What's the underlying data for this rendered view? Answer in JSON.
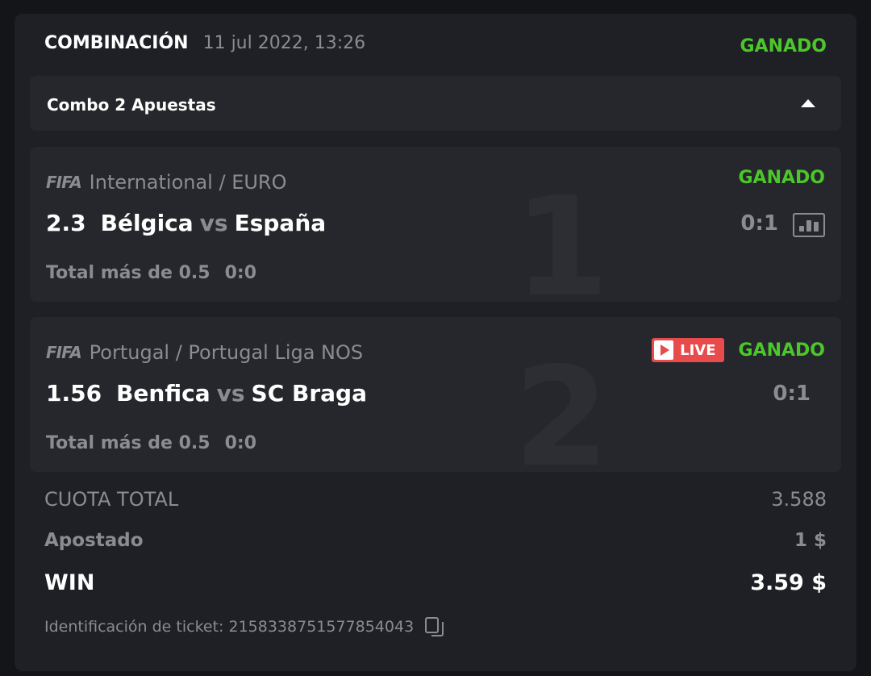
{
  "header": {
    "title": "COMBINACIÓN",
    "date": "11 jul 2022, 13:26",
    "status": "GANADO"
  },
  "combo": {
    "label": "Combo 2 Apuestas",
    "toggle_icon": "caret-up-icon"
  },
  "bets": [
    {
      "index": "1",
      "logo": "FIFA",
      "league": "International / EURO",
      "status": "GANADO",
      "live": false,
      "odds": "2.3",
      "home": "Bélgica",
      "vs": "vs",
      "away": "España",
      "score": "0:1",
      "market": "Total más de 0.5",
      "market_score": "0:0"
    },
    {
      "index": "2",
      "logo": "FIFA",
      "league": "Portugal / Portugal Liga NOS",
      "status": "GANADO",
      "live": true,
      "live_label": "LIVE",
      "odds": "1.56",
      "home": "Benfica",
      "vs": "vs",
      "away": "SC Braga",
      "score": "0:1",
      "market": "Total más de 0.5",
      "market_score": "0:0"
    }
  ],
  "summary": {
    "total_odds_label": "CUOTA TOTAL",
    "total_odds": "3.588",
    "staked_label": "Apostado",
    "staked": "1 $",
    "win_label": "WIN",
    "win": "3.59 $"
  },
  "ticket": {
    "label": "Identificación de ticket: 2158338751577854043"
  },
  "colors": {
    "win": "#4cc72a",
    "live": "#e84b4b",
    "card": "#1f2025",
    "panel": "#26272c"
  }
}
